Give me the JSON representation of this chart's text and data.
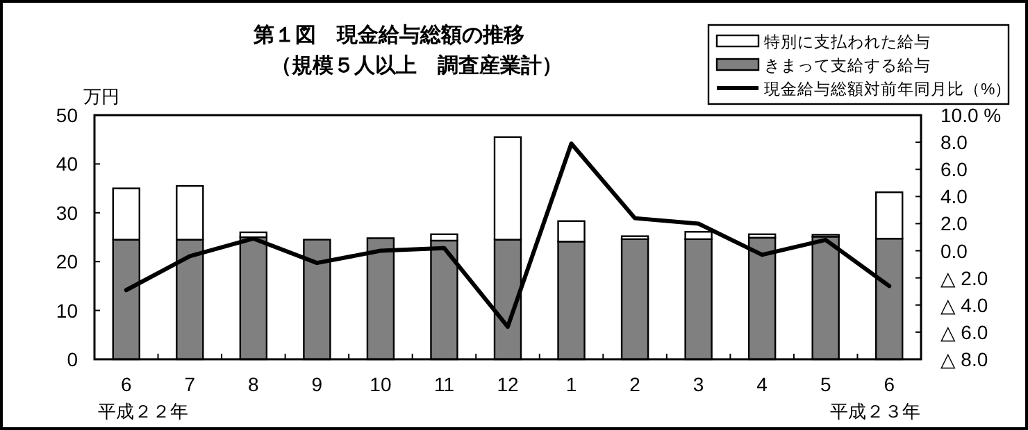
{
  "chart_data": {
    "type": "bar",
    "title": "第１図　現金給与総額の推移",
    "subtitle": "（規模５人以上　調査産業計）",
    "ylabel": "万円",
    "categories": [
      "6",
      "7",
      "8",
      "9",
      "10",
      "11",
      "12",
      "1",
      "2",
      "3",
      "4",
      "5",
      "6"
    ],
    "stacked": true,
    "series": [
      {
        "name": "きまって支給する給与",
        "color": "#808080",
        "values": [
          24.5,
          24.5,
          25.0,
          24.5,
          24.8,
          24.3,
          24.5,
          24.1,
          24.6,
          24.6,
          24.9,
          25.1,
          24.7
        ]
      },
      {
        "name": "特別に支払われた給与",
        "color": "#ffffff",
        "values": [
          10.5,
          11.0,
          1.0,
          0.0,
          0.0,
          1.3,
          21.0,
          4.2,
          0.6,
          1.5,
          0.7,
          0.4,
          9.5
        ]
      },
      {
        "name": "現金給与総額対前年同月比（%）",
        "type": "line",
        "axis": "y2",
        "color": "#000000",
        "values": [
          -2.9,
          -0.4,
          0.9,
          -0.9,
          0.0,
          0.2,
          -5.6,
          7.9,
          2.4,
          2.0,
          -0.3,
          0.8,
          -2.6
        ]
      }
    ],
    "ylim": [
      0,
      50
    ],
    "yticks": [
      0,
      10,
      20,
      30,
      40,
      50
    ],
    "y2lim": [
      -8,
      10
    ],
    "y2ticks": [
      {
        "value": 10,
        "label": "10.0 %"
      },
      {
        "value": 8,
        "label": "8.0"
      },
      {
        "value": 6,
        "label": "6.0"
      },
      {
        "value": 4,
        "label": "4.0"
      },
      {
        "value": 2,
        "label": "2.0"
      },
      {
        "value": 0,
        "label": "0.0"
      },
      {
        "value": -2,
        "label": "△ 2.0"
      },
      {
        "value": -4,
        "label": "△ 4.0"
      },
      {
        "value": -6,
        "label": "△ 6.0"
      },
      {
        "value": -8,
        "label": "△ 8.0"
      }
    ],
    "annotations": [
      "平成２２年",
      "平成２３年"
    ],
    "legend": "top right",
    "grid": false,
    "marker": "none",
    "line_style": "solid"
  }
}
